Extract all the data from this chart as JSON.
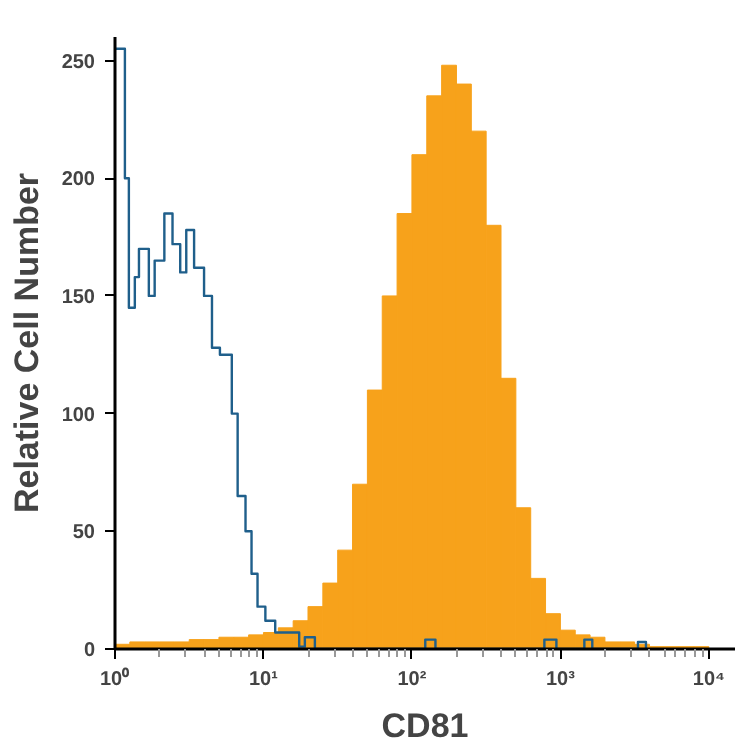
{
  "chart_data": {
    "type": "histogram",
    "xlabel": "CD81",
    "ylabel": "Relative Cell Number",
    "log": "x",
    "grid": false,
    "xlim": [
      1,
      15000
    ],
    "ylim": [
      0,
      260
    ],
    "xticks": [
      {
        "value": 1,
        "label": "10⁰"
      },
      {
        "value": 2,
        "label": null
      },
      {
        "value": 3,
        "label": null
      },
      {
        "value": 4,
        "label": null
      },
      {
        "value": 5,
        "label": null
      },
      {
        "value": 6,
        "label": null
      },
      {
        "value": 7,
        "label": null
      },
      {
        "value": 8,
        "label": null
      },
      {
        "value": 9,
        "label": null
      },
      {
        "value": 10,
        "label": "10¹"
      },
      {
        "value": 20,
        "label": null
      },
      {
        "value": 30,
        "label": null
      },
      {
        "value": 40,
        "label": null
      },
      {
        "value": 50,
        "label": null
      },
      {
        "value": 60,
        "label": null
      },
      {
        "value": 70,
        "label": null
      },
      {
        "value": 80,
        "label": null
      },
      {
        "value": 90,
        "label": null
      },
      {
        "value": 100,
        "label": "10²"
      },
      {
        "value": 200,
        "label": null
      },
      {
        "value": 300,
        "label": null
      },
      {
        "value": 400,
        "label": null
      },
      {
        "value": 500,
        "label": null
      },
      {
        "value": 600,
        "label": null
      },
      {
        "value": 700,
        "label": null
      },
      {
        "value": 800,
        "label": null
      },
      {
        "value": 900,
        "label": null
      },
      {
        "value": 1000,
        "label": "10³"
      },
      {
        "value": 2000,
        "label": null
      },
      {
        "value": 3000,
        "label": null
      },
      {
        "value": 4000,
        "label": null
      },
      {
        "value": 5000,
        "label": null
      },
      {
        "value": 6000,
        "label": null
      },
      {
        "value": 7000,
        "label": null
      },
      {
        "value": 8000,
        "label": null
      },
      {
        "value": 9000,
        "label": null
      },
      {
        "value": 10000,
        "label": "10⁴"
      }
    ],
    "yticks": [
      0,
      50,
      100,
      150,
      200,
      250
    ],
    "series": [
      {
        "color": "#f7a21b",
        "bins": [
          1,
          1.259,
          1.585,
          1.995,
          2.512,
          3.162,
          3.981,
          5.012,
          6.31,
          7.943,
          10,
          12.59,
          15.85,
          19.95,
          25.12,
          31.62,
          39.81,
          50.12,
          63.1,
          79.43,
          100,
          125.9,
          158.5,
          199.5,
          251.2,
          316.2,
          398.1,
          501.2,
          631,
          794.3,
          1000,
          1259,
          1585,
          1995,
          2512,
          3162,
          3981,
          5012,
          6310,
          7943,
          10000
        ],
        "values": [
          2,
          3,
          3,
          3,
          3,
          4,
          4,
          5,
          5,
          6,
          7,
          9,
          12,
          18,
          28,
          42,
          70,
          110,
          150,
          185,
          210,
          235,
          248,
          240,
          220,
          180,
          115,
          60,
          30,
          15,
          8,
          6,
          5,
          3,
          3,
          2,
          1,
          1,
          1,
          1
        ]
      },
      {
        "type": "step",
        "color": "#1f5f8b",
        "x": [
          1,
          1.166,
          1.24,
          1.36,
          1.45,
          1.69,
          1.85,
          2.15,
          2.44,
          2.75,
          3.02,
          3.41,
          3.98,
          4.5,
          5.09,
          6.12,
          6.7,
          7.57,
          8.31,
          9.12,
          10.3,
          12,
          17.4,
          19,
          22.2,
          123,
          144,
          780,
          940,
          1450,
          1640,
          3330,
          3770
        ],
        "values": [
          255,
          200,
          145,
          158,
          170,
          150,
          165,
          185,
          172,
          160,
          178,
          162,
          150,
          128,
          125,
          100,
          65,
          50,
          32,
          18,
          12,
          7,
          1,
          5,
          0,
          4,
          0,
          4,
          0,
          4,
          0,
          3,
          0
        ]
      }
    ]
  }
}
